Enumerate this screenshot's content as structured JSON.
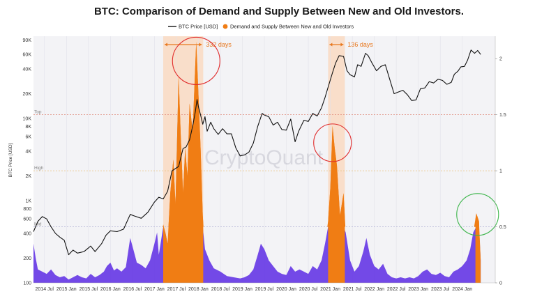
{
  "chart_data": {
    "type": "area",
    "title": "BTC: Comparison of Demand and Supply Between New and Old Investors.",
    "watermark": "CryptoQuant",
    "ylabel_left": "BTC Price [USD]",
    "legend": [
      {
        "label": "BTC Price [USD]",
        "color": "#111111",
        "marker": "line"
      },
      {
        "label": "Demand and Supply Between New and Old Investors",
        "color": "#f07d14",
        "marker": "dot"
      }
    ],
    "x_ticks": [
      "2014 Jul",
      "2015 Jan",
      "2015 Jul",
      "2016 Jan",
      "2016 Jul",
      "2017 Jan",
      "2017 Jul",
      "2018 Jan",
      "2018 Jul",
      "2019 Jan",
      "2019 Jul",
      "2020 Jan",
      "2020 Jul",
      "2021 Jan",
      "2021 Jul",
      "2022 Jan",
      "2022 Jul",
      "2023 Jan",
      "2023 Jul",
      "2024 Jan"
    ],
    "x_range": [
      2014.25,
      2024.75
    ],
    "y_left": {
      "scale": "log",
      "range": [
        100,
        100000
      ],
      "ticks": [
        {
          "v": 100,
          "label": "100"
        },
        {
          "v": 200,
          "label": "200"
        },
        {
          "v": 400,
          "label": "400"
        },
        {
          "v": 600,
          "label": "600"
        },
        {
          "v": 800,
          "label": "800"
        },
        {
          "v": 1000,
          "label": "1K"
        },
        {
          "v": 2000,
          "label": "2K"
        },
        {
          "v": 4000,
          "label": "4K"
        },
        {
          "v": 6000,
          "label": "6K"
        },
        {
          "v": 8000,
          "label": "8K"
        },
        {
          "v": 10000,
          "label": "10K"
        },
        {
          "v": 20000,
          "label": "20K"
        },
        {
          "v": 40000,
          "label": "40K"
        },
        {
          "v": 60000,
          "label": "60K"
        },
        {
          "v": 90000,
          "label": "90K"
        }
      ]
    },
    "y_right": {
      "scale": "linear",
      "range": [
        0,
        2.2
      ],
      "ticks": [
        {
          "v": 0,
          "label": "0"
        },
        {
          "v": 0.5,
          "label": "0.5"
        },
        {
          "v": 1,
          "label": "1"
        },
        {
          "v": 1.5,
          "label": "1.5"
        },
        {
          "v": 2,
          "label": "2"
        }
      ]
    },
    "reference_lines": [
      {
        "label": "Top",
        "value": 1.5,
        "color": "#e08a7a"
      },
      {
        "label": "High",
        "value": 1.0,
        "color": "#e8c27a"
      },
      {
        "label": "Mid",
        "value": 0.5,
        "color": "#b9b9d8"
      }
    ],
    "highlight_periods": [
      {
        "start": 2017.2,
        "end": 2018.11,
        "label": "332 days"
      },
      {
        "start": 2020.95,
        "end": 2021.33,
        "label": "136 days"
      }
    ],
    "highlight_circles": [
      {
        "x": 2017.95,
        "y_ratio": 1.98,
        "color": "#e02b2b"
      },
      {
        "x": 2021.05,
        "y_ratio": 1.25,
        "color": "#e02b2b"
      },
      {
        "x": 2024.35,
        "y_ratio": 0.61,
        "color": "#3cb54a"
      }
    ],
    "series": [
      {
        "name": "BTC Price [USD]",
        "color": "#111111",
        "points": [
          [
            2014.25,
            420
          ],
          [
            2014.35,
            560
          ],
          [
            2014.45,
            640
          ],
          [
            2014.55,
            600
          ],
          [
            2014.65,
            480
          ],
          [
            2014.75,
            400
          ],
          [
            2014.85,
            360
          ],
          [
            2014.95,
            330
          ],
          [
            2015.05,
            220
          ],
          [
            2015.15,
            250
          ],
          [
            2015.25,
            230
          ],
          [
            2015.4,
            240
          ],
          [
            2015.55,
            280
          ],
          [
            2015.65,
            240
          ],
          [
            2015.8,
            300
          ],
          [
            2015.9,
            380
          ],
          [
            2016.0,
            430
          ],
          [
            2016.15,
            420
          ],
          [
            2016.3,
            450
          ],
          [
            2016.45,
            680
          ],
          [
            2016.55,
            650
          ],
          [
            2016.7,
            610
          ],
          [
            2016.85,
            720
          ],
          [
            2017.0,
            960
          ],
          [
            2017.1,
            1100
          ],
          [
            2017.2,
            1050
          ],
          [
            2017.3,
            1300
          ],
          [
            2017.4,
            2300
          ],
          [
            2017.5,
            2500
          ],
          [
            2017.55,
            2600
          ],
          [
            2017.65,
            4300
          ],
          [
            2017.72,
            4500
          ],
          [
            2017.8,
            5500
          ],
          [
            2017.87,
            8000
          ],
          [
            2017.93,
            12000
          ],
          [
            2017.97,
            17000
          ],
          [
            2018.0,
            14000
          ],
          [
            2018.05,
            11000
          ],
          [
            2018.1,
            8500
          ],
          [
            2018.15,
            10500
          ],
          [
            2018.2,
            7000
          ],
          [
            2018.28,
            9000
          ],
          [
            2018.35,
            7500
          ],
          [
            2018.45,
            6400
          ],
          [
            2018.55,
            7500
          ],
          [
            2018.65,
            6500
          ],
          [
            2018.75,
            6500
          ],
          [
            2018.85,
            4400
          ],
          [
            2018.95,
            3500
          ],
          [
            2019.05,
            3600
          ],
          [
            2019.15,
            3900
          ],
          [
            2019.25,
            5000
          ],
          [
            2019.35,
            8000
          ],
          [
            2019.45,
            11500
          ],
          [
            2019.5,
            11000
          ],
          [
            2019.6,
            10500
          ],
          [
            2019.7,
            8300
          ],
          [
            2019.8,
            9000
          ],
          [
            2019.9,
            7300
          ],
          [
            2020.0,
            7200
          ],
          [
            2020.1,
            9800
          ],
          [
            2020.2,
            5200
          ],
          [
            2020.28,
            7000
          ],
          [
            2020.4,
            9500
          ],
          [
            2020.5,
            9200
          ],
          [
            2020.6,
            11500
          ],
          [
            2020.7,
            10700
          ],
          [
            2020.8,
            13500
          ],
          [
            2020.88,
            18000
          ],
          [
            2020.95,
            24000
          ],
          [
            2021.05,
            36000
          ],
          [
            2021.12,
            47000
          ],
          [
            2021.2,
            58000
          ],
          [
            2021.3,
            57000
          ],
          [
            2021.38,
            38000
          ],
          [
            2021.45,
            34000
          ],
          [
            2021.55,
            32000
          ],
          [
            2021.62,
            45000
          ],
          [
            2021.7,
            43000
          ],
          [
            2021.8,
            62000
          ],
          [
            2021.86,
            58000
          ],
          [
            2021.95,
            47000
          ],
          [
            2022.05,
            38000
          ],
          [
            2022.15,
            43000
          ],
          [
            2022.25,
            45000
          ],
          [
            2022.35,
            30000
          ],
          [
            2022.45,
            20000
          ],
          [
            2022.55,
            21000
          ],
          [
            2022.65,
            22000
          ],
          [
            2022.75,
            19500
          ],
          [
            2022.85,
            16500
          ],
          [
            2022.95,
            16800
          ],
          [
            2023.05,
            23000
          ],
          [
            2023.15,
            23500
          ],
          [
            2023.25,
            28000
          ],
          [
            2023.35,
            27000
          ],
          [
            2023.45,
            30000
          ],
          [
            2023.55,
            29000
          ],
          [
            2023.65,
            26000
          ],
          [
            2023.75,
            27500
          ],
          [
            2023.82,
            34500
          ],
          [
            2023.9,
            37500
          ],
          [
            2023.97,
            42500
          ],
          [
            2024.05,
            43000
          ],
          [
            2024.12,
            51000
          ],
          [
            2024.2,
            68000
          ],
          [
            2024.28,
            62000
          ],
          [
            2024.35,
            67000
          ],
          [
            2024.42,
            60000
          ]
        ]
      },
      {
        "name": "Demand and Supply Between New and Old Investors",
        "color": "#f07d14",
        "low_color": "#6b3fe6",
        "threshold": 0.5,
        "points": [
          [
            2014.25,
            0.35
          ],
          [
            2014.3,
            0.22
          ],
          [
            2014.35,
            0.12
          ],
          [
            2014.45,
            0.1
          ],
          [
            2014.55,
            0.08
          ],
          [
            2014.65,
            0.12
          ],
          [
            2014.75,
            0.07
          ],
          [
            2014.85,
            0.05
          ],
          [
            2014.95,
            0.06
          ],
          [
            2015.05,
            0.03
          ],
          [
            2015.15,
            0.05
          ],
          [
            2015.25,
            0.07
          ],
          [
            2015.35,
            0.05
          ],
          [
            2015.45,
            0.04
          ],
          [
            2015.55,
            0.08
          ],
          [
            2015.65,
            0.05
          ],
          [
            2015.75,
            0.07
          ],
          [
            2015.85,
            0.1
          ],
          [
            2015.92,
            0.15
          ],
          [
            2016.0,
            0.18
          ],
          [
            2016.08,
            0.11
          ],
          [
            2016.15,
            0.13
          ],
          [
            2016.25,
            0.1
          ],
          [
            2016.35,
            0.14
          ],
          [
            2016.45,
            0.4
          ],
          [
            2016.52,
            0.3
          ],
          [
            2016.6,
            0.18
          ],
          [
            2016.7,
            0.16
          ],
          [
            2016.8,
            0.13
          ],
          [
            2016.9,
            0.2
          ],
          [
            2017.0,
            0.35
          ],
          [
            2017.06,
            0.45
          ],
          [
            2017.1,
            0.25
          ],
          [
            2017.2,
            0.52
          ],
          [
            2017.25,
            0.45
          ],
          [
            2017.3,
            0.35
          ],
          [
            2017.36,
            0.8
          ],
          [
            2017.43,
            1.1
          ],
          [
            2017.48,
            0.7
          ],
          [
            2017.55,
            1.85
          ],
          [
            2017.6,
            1.3
          ],
          [
            2017.65,
            0.8
          ],
          [
            2017.7,
            1.2
          ],
          [
            2017.75,
            0.95
          ],
          [
            2017.8,
            1.6
          ],
          [
            2017.87,
            1.35
          ],
          [
            2017.95,
            2.15
          ],
          [
            2018.0,
            1.7
          ],
          [
            2018.05,
            1.2
          ],
          [
            2018.1,
            0.6
          ],
          [
            2018.15,
            0.3
          ],
          [
            2018.25,
            0.2
          ],
          [
            2018.35,
            0.13
          ],
          [
            2018.5,
            0.1
          ],
          [
            2018.65,
            0.06
          ],
          [
            2018.8,
            0.05
          ],
          [
            2018.95,
            0.04
          ],
          [
            2019.05,
            0.05
          ],
          [
            2019.15,
            0.07
          ],
          [
            2019.25,
            0.12
          ],
          [
            2019.35,
            0.25
          ],
          [
            2019.42,
            0.35
          ],
          [
            2019.5,
            0.3
          ],
          [
            2019.6,
            0.2
          ],
          [
            2019.7,
            0.15
          ],
          [
            2019.8,
            0.1
          ],
          [
            2019.9,
            0.08
          ],
          [
            2020.0,
            0.07
          ],
          [
            2020.1,
            0.15
          ],
          [
            2020.2,
            0.1
          ],
          [
            2020.3,
            0.12
          ],
          [
            2020.4,
            0.1
          ],
          [
            2020.5,
            0.08
          ],
          [
            2020.6,
            0.15
          ],
          [
            2020.7,
            0.12
          ],
          [
            2020.8,
            0.2
          ],
          [
            2020.88,
            0.35
          ],
          [
            2020.95,
            0.55
          ],
          [
            2021.0,
            0.85
          ],
          [
            2021.05,
            1.4
          ],
          [
            2021.1,
            1.2
          ],
          [
            2021.15,
            1.05
          ],
          [
            2021.22,
            0.6
          ],
          [
            2021.3,
            0.8
          ],
          [
            2021.35,
            0.45
          ],
          [
            2021.45,
            0.2
          ],
          [
            2021.55,
            0.1
          ],
          [
            2021.65,
            0.15
          ],
          [
            2021.75,
            0.28
          ],
          [
            2021.82,
            0.4
          ],
          [
            2021.9,
            0.25
          ],
          [
            2022.0,
            0.15
          ],
          [
            2022.1,
            0.12
          ],
          [
            2022.2,
            0.17
          ],
          [
            2022.3,
            0.08
          ],
          [
            2022.4,
            0.05
          ],
          [
            2022.5,
            0.04
          ],
          [
            2022.6,
            0.05
          ],
          [
            2022.7,
            0.04
          ],
          [
            2022.8,
            0.05
          ],
          [
            2022.9,
            0.04
          ],
          [
            2023.0,
            0.06
          ],
          [
            2023.1,
            0.1
          ],
          [
            2023.2,
            0.12
          ],
          [
            2023.3,
            0.08
          ],
          [
            2023.4,
            0.07
          ],
          [
            2023.5,
            0.09
          ],
          [
            2023.6,
            0.06
          ],
          [
            2023.7,
            0.05
          ],
          [
            2023.8,
            0.1
          ],
          [
            2023.9,
            0.12
          ],
          [
            2024.0,
            0.15
          ],
          [
            2024.1,
            0.2
          ],
          [
            2024.18,
            0.3
          ],
          [
            2024.25,
            0.45
          ],
          [
            2024.32,
            0.62
          ],
          [
            2024.38,
            0.55
          ],
          [
            2024.42,
            0.2
          ]
        ]
      }
    ]
  }
}
